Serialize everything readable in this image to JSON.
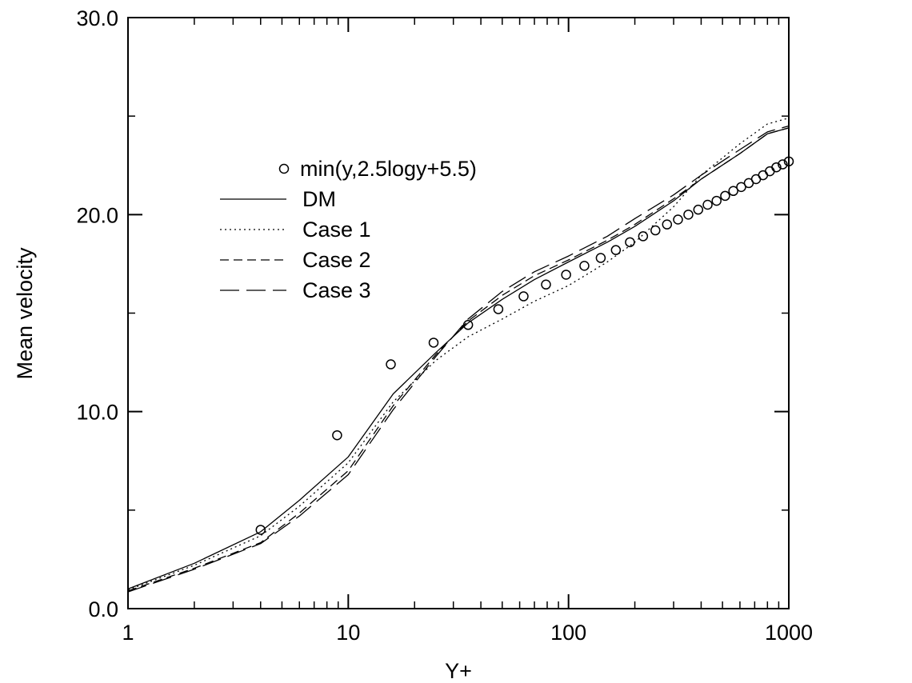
{
  "chart_data": {
    "type": "line",
    "xlabel": "Y+",
    "ylabel": "Mean velocity",
    "xscale": "log",
    "xlim": [
      1,
      1000
    ],
    "ylim": [
      0,
      30
    ],
    "x_ticks": [
      1,
      10,
      100,
      1000
    ],
    "x_tick_labels": [
      "1",
      "10",
      "100",
      "1000"
    ],
    "y_ticks": [
      0,
      10,
      20,
      30
    ],
    "y_tick_labels": [
      "0.0",
      "10.0",
      "20.0",
      "30.0"
    ],
    "y_minor_ticks": [
      5,
      15,
      25
    ],
    "grid": false,
    "legend_position": "upper-left",
    "series": [
      {
        "name": "min(y,2.5logy+5.5)",
        "style": "circle-markers",
        "x": [
          4,
          8.9,
          15.6,
          24.4,
          35,
          48,
          62.5,
          79,
          97.5,
          118,
          140,
          164,
          190,
          218,
          248,
          280,
          314,
          350,
          388,
          428,
          470,
          514,
          560,
          608,
          658,
          710,
          764,
          820,
          878,
          938,
          1000
        ],
        "y": [
          4.0,
          8.8,
          12.4,
          13.5,
          14.4,
          15.2,
          15.85,
          16.45,
          16.95,
          17.4,
          17.8,
          18.2,
          18.6,
          18.9,
          19.2,
          19.5,
          19.75,
          20.0,
          20.25,
          20.5,
          20.7,
          20.95,
          21.2,
          21.4,
          21.6,
          21.8,
          22.0,
          22.2,
          22.4,
          22.55,
          22.7
        ]
      },
      {
        "name": "DM",
        "style": "solid",
        "x": [
          1,
          2,
          4,
          6,
          10,
          16,
          25,
          35,
          50,
          70,
          100,
          150,
          200,
          300,
          400,
          600,
          800,
          1000
        ],
        "y": [
          1.0,
          2.3,
          3.9,
          5.5,
          7.7,
          10.9,
          13.0,
          14.5,
          15.7,
          16.7,
          17.6,
          18.6,
          19.4,
          20.7,
          21.8,
          23.1,
          24.1,
          24.4
        ]
      },
      {
        "name": "Case 1",
        "style": "dotted",
        "x": [
          1,
          2,
          4,
          6,
          10,
          16,
          25,
          35,
          50,
          70,
          100,
          150,
          200,
          300,
          400,
          600,
          800,
          1000
        ],
        "y": [
          0.95,
          2.2,
          3.7,
          5.2,
          7.4,
          10.5,
          12.6,
          13.8,
          14.7,
          15.6,
          16.4,
          17.6,
          18.6,
          20.4,
          22.0,
          23.6,
          24.6,
          24.9
        ]
      },
      {
        "name": "Case 2",
        "style": "dashed",
        "x": [
          1,
          2,
          4,
          6,
          10,
          16,
          25,
          35,
          50,
          70,
          100,
          150,
          200,
          300,
          400,
          600,
          800,
          1000
        ],
        "y": [
          0.9,
          2.05,
          3.35,
          4.85,
          7.0,
          10.3,
          12.9,
          14.6,
          15.9,
          16.9,
          17.7,
          18.7,
          19.5,
          20.8,
          21.8,
          23.1,
          24.1,
          24.4
        ]
      },
      {
        "name": "Case 3",
        "style": "long-dashed",
        "x": [
          1,
          2,
          4,
          6,
          10,
          16,
          25,
          35,
          50,
          70,
          100,
          150,
          200,
          300,
          400,
          600,
          800,
          1000
        ],
        "y": [
          0.85,
          2.0,
          3.3,
          4.7,
          6.8,
          10.1,
          12.8,
          14.7,
          16.1,
          17.1,
          17.9,
          18.9,
          19.8,
          21.0,
          22.0,
          23.3,
          24.2,
          24.5
        ]
      }
    ]
  }
}
